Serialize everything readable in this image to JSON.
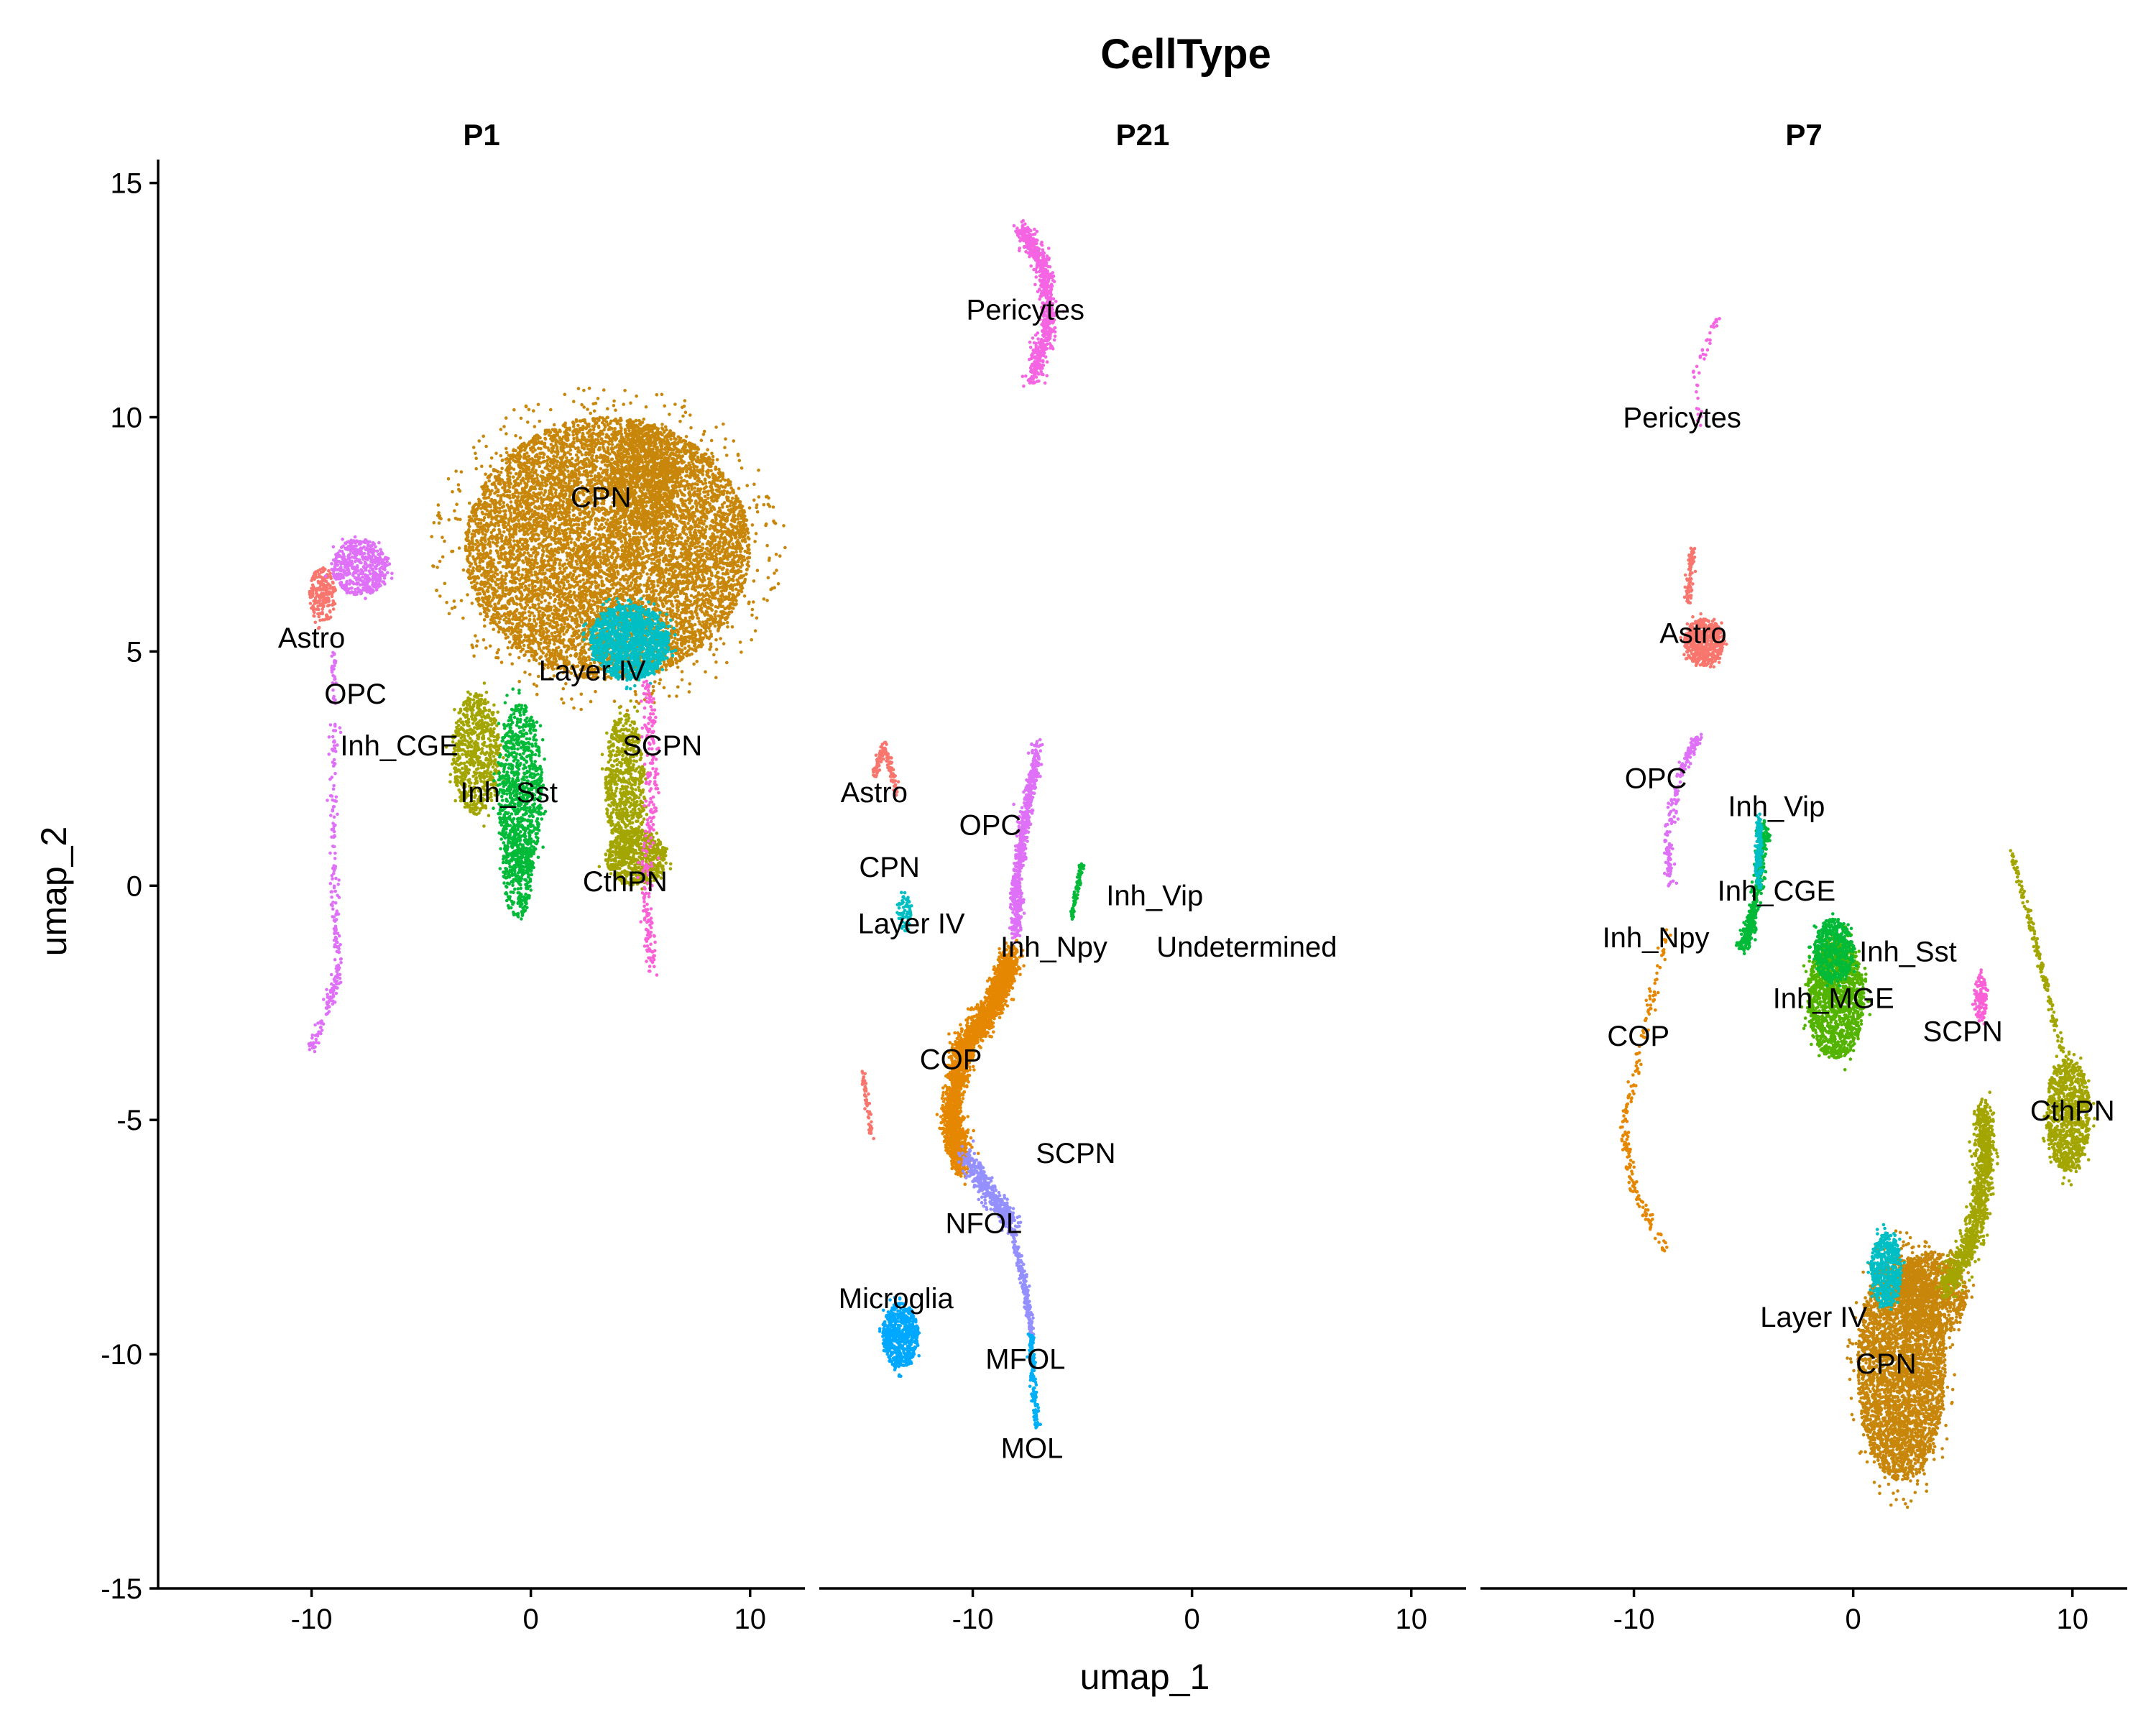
{
  "chart_data": {
    "type": "scatter",
    "title": "CellType",
    "xlabel": "umap_1",
    "ylabel": "umap_2",
    "xlim": [
      -17,
      12.5
    ],
    "ylim": [
      -15,
      15.5
    ],
    "x_ticks": [
      -10,
      0,
      10
    ],
    "y_ticks": [
      15,
      10,
      5,
      0,
      -5,
      -10,
      -15
    ],
    "x_tick_labels": [
      "-10",
      "0",
      "10"
    ],
    "y_tick_labels": [
      "15",
      "10",
      "5",
      "0",
      "-5",
      "-10",
      "-15"
    ],
    "grid": false,
    "legend": "none",
    "palette": {
      "Astro": "#F8766D",
      "CthPN": "#D39200",
      "COP": "#E58700",
      "CPN": "#C49A00",
      "Inh_CGE": "#99A800",
      "Inh_MGE": "#53B400",
      "Inh_Npy": "#00BC56",
      "Inh_Sst": "#00C094",
      "Inh_Vip": "#00BFC4",
      "Layer IV": "#00B6EB",
      "MFOL": "#06A4FF",
      "Microglia": "#A58AFF",
      "MOL": "#DF70F8",
      "NFOL": "#FB61D7",
      "OPC": "#FF66A8",
      "Pericytes": "#F8766D",
      "SCPN": "#FB61D7",
      "Undetermined": "#999999"
    },
    "panels": [
      {
        "name": "P1",
        "clusters": [
          {
            "type": "blob",
            "cell": "CPN",
            "color": "#C8860A",
            "cx": 3.5,
            "cy": 7.2,
            "rx": 6.5,
            "ry": 2.8,
            "n": 9000
          },
          {
            "type": "blob",
            "cell": "CPN",
            "color": "#C8860A",
            "cx": 5.2,
            "cy": 8.7,
            "rx": 1.5,
            "ry": 1.1,
            "n": 800
          },
          {
            "type": "blob",
            "cell": "Layer IV",
            "color": "#00BFC4",
            "cx": 4.5,
            "cy": 5.2,
            "rx": 1.8,
            "ry": 0.8,
            "n": 1400
          },
          {
            "type": "blob",
            "cell": "Astro",
            "color": "#F8766D",
            "cx": -9.5,
            "cy": 6.2,
            "rx": 0.6,
            "ry": 0.6,
            "n": 200
          },
          {
            "type": "blob",
            "cell": "OPC",
            "color": "#DF70F8",
            "cx": -7.8,
            "cy": 6.8,
            "rx": 1.3,
            "ry": 0.6,
            "n": 500
          },
          {
            "type": "line",
            "cell": "OPC",
            "color": "#DF70F8",
            "pts": [
              [
                -9.0,
                5.0
              ],
              [
                -9.0,
                0.5
              ],
              [
                -8.8,
                -2.0
              ],
              [
                -10.0,
                -3.5
              ]
            ],
            "n": 250,
            "w": 0.2
          },
          {
            "type": "blob",
            "cell": "Inh_CGE",
            "color": "#A3A500",
            "cx": -2.5,
            "cy": 2.8,
            "rx": 1.1,
            "ry": 1.3,
            "n": 700
          },
          {
            "type": "blob",
            "cell": "Inh_Sst",
            "color": "#00BA38",
            "cx": -0.5,
            "cy": 2.0,
            "rx": 1.0,
            "ry": 1.9,
            "n": 900
          },
          {
            "type": "blob",
            "cell": "Inh_Sst",
            "color": "#00BA38",
            "cx": -0.6,
            "cy": 0.3,
            "rx": 0.7,
            "ry": 1.0,
            "n": 300
          },
          {
            "type": "blob",
            "cell": "CthPN",
            "color": "#A3A500",
            "cx": 4.3,
            "cy": 2.1,
            "rx": 0.9,
            "ry": 1.6,
            "n": 700
          },
          {
            "type": "blob",
            "cell": "CthPN",
            "color": "#A3A500",
            "cx": 4.8,
            "cy": 0.6,
            "rx": 1.4,
            "ry": 0.6,
            "n": 600
          },
          {
            "type": "line",
            "cell": "SCPN",
            "color": "#FB61D7",
            "pts": [
              [
                5.3,
                4.2
              ],
              [
                5.6,
                2.5
              ],
              [
                5.2,
                0.0
              ],
              [
                5.5,
                -1.8
              ]
            ],
            "n": 250,
            "w": 0.3
          }
        ],
        "labels": [
          {
            "text": "CPN",
            "x": 3.2,
            "y": 8.3
          },
          {
            "text": "Astro",
            "x": -10.0,
            "y": 5.3
          },
          {
            "text": "Layer IV",
            "x": 2.8,
            "y": 4.6
          },
          {
            "text": "OPC",
            "x": -8.0,
            "y": 4.1
          },
          {
            "text": "Inh_CGE",
            "x": -6.0,
            "y": 3.0
          },
          {
            "text": "SCPN",
            "x": 6.0,
            "y": 3.0
          },
          {
            "text": "Inh_Sst",
            "x": -1.0,
            "y": 2.0
          },
          {
            "text": "CthPN",
            "x": 4.3,
            "y": 0.1
          }
        ]
      },
      {
        "name": "P21",
        "clusters": [
          {
            "type": "line",
            "cell": "Pericytes",
            "color": "#F564E3",
            "pts": [
              [
                -7.8,
                14.0
              ],
              [
                -6.8,
                13.3
              ],
              [
                -6.5,
                12.0
              ],
              [
                -7.3,
                10.8
              ]
            ],
            "n": 700,
            "w": 0.35
          },
          {
            "type": "line",
            "cell": "OPC",
            "color": "#DF70F8",
            "pts": [
              [
                -7.0,
                3.0
              ],
              [
                -7.6,
                1.5
              ],
              [
                -8.0,
                0.0
              ],
              [
                -8.0,
                -1.0
              ]
            ],
            "n": 600,
            "w": 0.25
          },
          {
            "type": "line",
            "cell": "COP",
            "color": "#E58700",
            "pts": [
              [
                -8.2,
                -1.5
              ],
              [
                -9.0,
                -2.5
              ],
              [
                -10.5,
                -3.5
              ],
              [
                -11.0,
                -5.0
              ],
              [
                -10.5,
                -6.0
              ]
            ],
            "n": 2500,
            "w": 0.45
          },
          {
            "type": "line",
            "cell": "NFOL",
            "color": "#9590FF",
            "pts": [
              [
                -10.3,
                -5.8
              ],
              [
                -9.2,
                -6.6
              ],
              [
                -8.2,
                -7.2
              ]
            ],
            "n": 400,
            "w": 0.35
          },
          {
            "type": "line",
            "cell": "MFOL",
            "color": "#9590FF",
            "pts": [
              [
                -8.2,
                -7.4
              ],
              [
                -7.6,
                -8.6
              ],
              [
                -7.3,
                -9.6
              ]
            ],
            "n": 200,
            "w": 0.15
          },
          {
            "type": "line",
            "cell": "MOL",
            "color": "#00B0F6",
            "pts": [
              [
                -7.3,
                -9.6
              ],
              [
                -7.3,
                -10.6
              ],
              [
                -7.0,
                -11.6
              ]
            ],
            "n": 150,
            "w": 0.15
          },
          {
            "type": "blob",
            "cell": "Microglia",
            "color": "#00A9FF",
            "cx": -13.3,
            "cy": -9.6,
            "rx": 0.8,
            "ry": 0.7,
            "n": 600
          },
          {
            "type": "line",
            "cell": "Astro",
            "color": "#F8766D",
            "pts": [
              [
                -14.5,
                2.4
              ],
              [
                -14.0,
                3.0
              ],
              [
                -13.5,
                2.0
              ]
            ],
            "n": 120,
            "w": 0.15
          },
          {
            "type": "line",
            "cell": "Astro",
            "color": "#F8766D",
            "pts": [
              [
                -15.0,
                -4.0
              ],
              [
                -14.6,
                -5.4
              ]
            ],
            "n": 60,
            "w": 0.1
          },
          {
            "type": "blob",
            "cell": "Layer IV",
            "color": "#00BFC4",
            "cx": -13.1,
            "cy": -0.6,
            "rx": 0.3,
            "ry": 0.4,
            "n": 80
          },
          {
            "type": "line",
            "cell": "Inh_Vip",
            "color": "#00BA38",
            "pts": [
              [
                -5.0,
                0.5
              ],
              [
                -5.5,
                -0.7
              ]
            ],
            "n": 80,
            "w": 0.1
          }
        ],
        "labels": [
          {
            "text": "Pericytes",
            "x": -7.6,
            "y": 12.3
          },
          {
            "text": "Astro",
            "x": -14.5,
            "y": 2.0
          },
          {
            "text": "OPC",
            "x": -9.2,
            "y": 1.3
          },
          {
            "text": "CPN",
            "x": -13.8,
            "y": 0.4
          },
          {
            "text": "Inh_Vip",
            "x": -1.7,
            "y": -0.2
          },
          {
            "text": "Layer IV",
            "x": -12.8,
            "y": -0.8
          },
          {
            "text": "Inh_Npy",
            "x": -6.3,
            "y": -1.3
          },
          {
            "text": "Undetermined",
            "x": 2.5,
            "y": -1.3
          },
          {
            "text": "COP",
            "x": -11.0,
            "y": -3.7
          },
          {
            "text": "SCPN",
            "x": -5.3,
            "y": -5.7
          },
          {
            "text": "NFOL",
            "x": -9.5,
            "y": -7.2
          },
          {
            "text": "Microglia",
            "x": -13.5,
            "y": -8.8
          },
          {
            "text": "MFOL",
            "x": -7.6,
            "y": -10.1
          },
          {
            "text": "MOL",
            "x": -7.3,
            "y": -12.0
          }
        ]
      },
      {
        "name": "P7",
        "clusters": [
          {
            "type": "blob",
            "cell": "CPN",
            "color": "#C8860A",
            "cx": 2.2,
            "cy": -10.3,
            "rx": 2.0,
            "ry": 2.4,
            "n": 3500
          },
          {
            "type": "blob",
            "cell": "CPN",
            "color": "#C8860A",
            "cx": 3.6,
            "cy": -8.7,
            "rx": 1.6,
            "ry": 0.9,
            "n": 900
          },
          {
            "type": "line",
            "cell": "CthPN",
            "color": "#A3A500",
            "pts": [
              [
                4.2,
                -8.6
              ],
              [
                5.5,
                -7.5
              ],
              [
                6.0,
                -6.0
              ],
              [
                6.0,
                -4.8
              ]
            ],
            "n": 1000,
            "w": 0.45
          },
          {
            "type": "blob",
            "cell": "CthPN",
            "color": "#A3A500",
            "cx": 9.8,
            "cy": -4.9,
            "rx": 1.0,
            "ry": 1.2,
            "n": 900
          },
          {
            "type": "line",
            "cell": "CthPN",
            "color": "#A3A500",
            "pts": [
              [
                9.5,
                -3.5
              ],
              [
                8.5,
                -1.5
              ],
              [
                7.2,
                0.7
              ]
            ],
            "n": 150,
            "w": 0.15
          },
          {
            "type": "blob",
            "cell": "Layer IV",
            "color": "#00BFC4",
            "cx": 1.5,
            "cy": -8.2,
            "rx": 0.7,
            "ry": 0.8,
            "n": 500
          },
          {
            "type": "blob",
            "cell": "Inh_MGE",
            "color": "#53B400",
            "cx": -0.8,
            "cy": -2.4,
            "rx": 1.3,
            "ry": 1.3,
            "n": 1400
          },
          {
            "type": "blob",
            "cell": "Inh_Sst",
            "color": "#00BA38",
            "cx": -0.9,
            "cy": -1.4,
            "rx": 0.9,
            "ry": 0.7,
            "n": 500
          },
          {
            "type": "line",
            "cell": "Inh_CGE",
            "color": "#00BA38",
            "pts": [
              [
                -4.0,
                1.3
              ],
              [
                -4.5,
                -0.5
              ],
              [
                -5.0,
                -1.3
              ]
            ],
            "n": 400,
            "w": 0.25
          },
          {
            "type": "line",
            "cell": "Inh_Vip",
            "color": "#00BFC4",
            "pts": [
              [
                -4.3,
                1.5
              ],
              [
                -4.3,
                0.0
              ]
            ],
            "n": 150,
            "w": 0.15
          },
          {
            "type": "blob",
            "cell": "Astro",
            "color": "#F8766D",
            "cx": -6.8,
            "cy": 5.2,
            "rx": 0.9,
            "ry": 0.5,
            "n": 500
          },
          {
            "type": "line",
            "cell": "Astro",
            "color": "#F8766D",
            "pts": [
              [
                -7.3,
                7.2
              ],
              [
                -7.6,
                6.0
              ]
            ],
            "n": 80,
            "w": 0.15
          },
          {
            "type": "line",
            "cell": "OPC",
            "color": "#DF70F8",
            "pts": [
              [
                -7.0,
                3.2
              ],
              [
                -7.8,
                2.5
              ],
              [
                -8.5,
                1.0
              ],
              [
                -8.3,
                0.0
              ]
            ],
            "n": 180,
            "w": 0.2
          },
          {
            "type": "line",
            "cell": "COP",
            "color": "#E58700",
            "pts": [
              [
                -8.5,
                -1.0
              ],
              [
                -9.5,
                -3.0
              ],
              [
                -10.5,
                -5.2
              ],
              [
                -10.0,
                -6.5
              ],
              [
                -8.5,
                -7.8
              ]
            ],
            "n": 200,
            "w": 0.2
          },
          {
            "type": "blob",
            "cell": "SCPN",
            "color": "#FB61D7",
            "cx": 5.8,
            "cy": -2.4,
            "rx": 0.3,
            "ry": 0.5,
            "n": 120
          },
          {
            "type": "line",
            "cell": "Pericytes",
            "color": "#F564E3",
            "pts": [
              [
                -6.0,
                12.3
              ],
              [
                -7.2,
                11.0
              ],
              [
                -7.0,
                9.8
              ]
            ],
            "n": 40,
            "w": 0.15
          }
        ],
        "labels": [
          {
            "text": "Pericytes",
            "x": -7.8,
            "y": 10.0
          },
          {
            "text": "Astro",
            "x": -7.3,
            "y": 5.4
          },
          {
            "text": "OPC",
            "x": -9.0,
            "y": 2.3
          },
          {
            "text": "Inh_Vip",
            "x": -3.5,
            "y": 1.7
          },
          {
            "text": "Inh_CGE",
            "x": -3.5,
            "y": -0.1
          },
          {
            "text": "Inh_Npy",
            "x": -9.0,
            "y": -1.1
          },
          {
            "text": "Inh_Sst",
            "x": 2.5,
            "y": -1.4
          },
          {
            "text": "Inh_MGE",
            "x": -0.9,
            "y": -2.4
          },
          {
            "text": "COP",
            "x": -9.8,
            "y": -3.2
          },
          {
            "text": "SCPN",
            "x": 5.0,
            "y": -3.1
          },
          {
            "text": "CthPN",
            "x": 10.0,
            "y": -4.8
          },
          {
            "text": "Layer IV",
            "x": -1.8,
            "y": -9.2
          },
          {
            "text": "CPN",
            "x": 1.5,
            "y": -10.2
          }
        ]
      }
    ]
  }
}
